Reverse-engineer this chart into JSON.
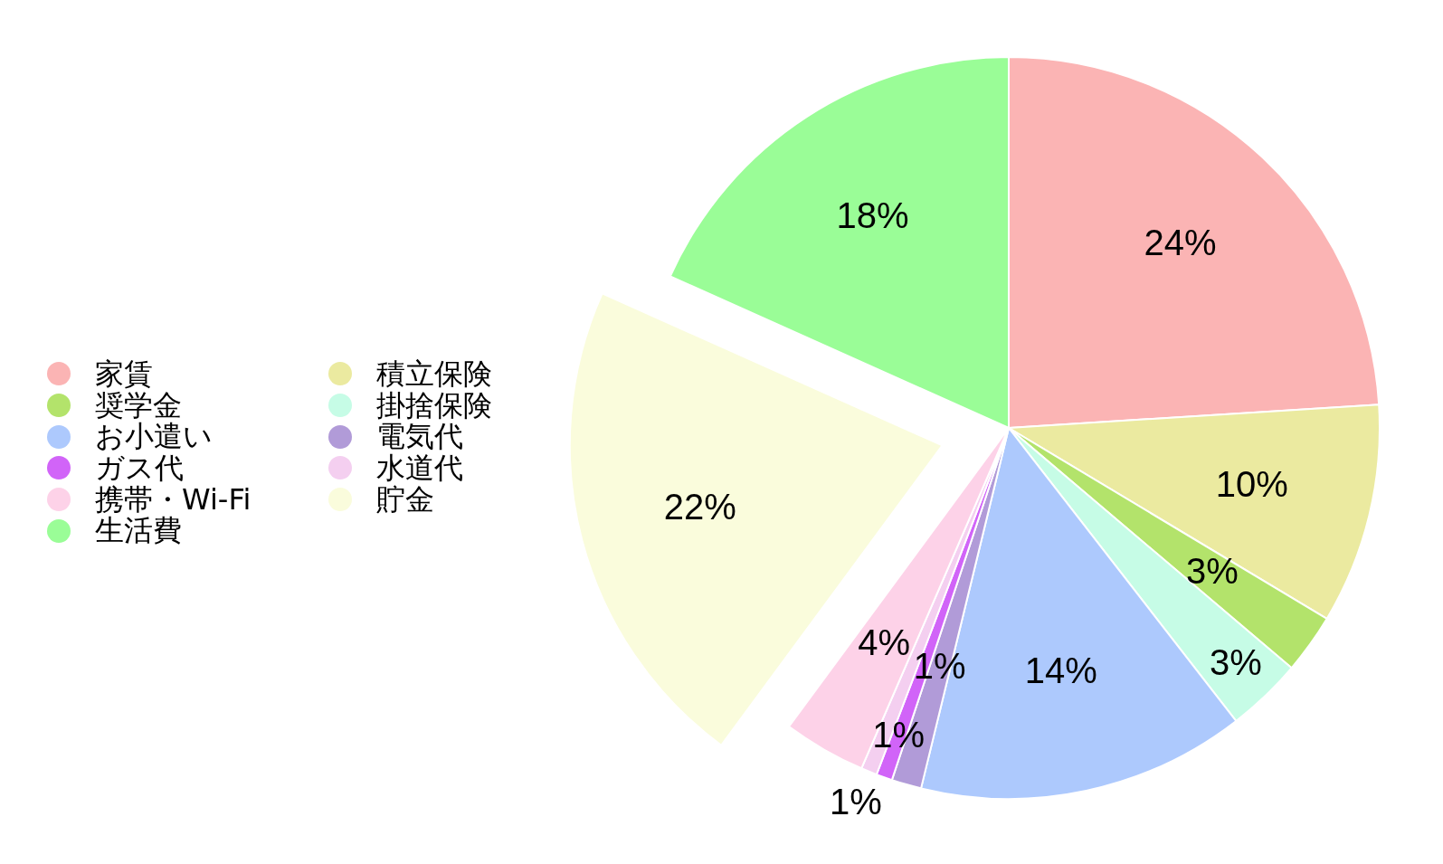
{
  "chart_data": {
    "type": "pie",
    "categories": [
      "家賃",
      "積立保険",
      "奨学金",
      "掛捨保険",
      "お小遣い",
      "電気代",
      "ガス代",
      "水道代",
      "携帯・Wi-Fi",
      "貯金",
      "生活費"
    ],
    "values": [
      24.0,
      9.6,
      2.6,
      3.3,
      14.3,
      1.3,
      0.7,
      0.7,
      3.6,
      21.6,
      18.3
    ],
    "colors": [
      "#fbb4b4",
      "#ebeaa0",
      "#b3e36b",
      "#c6fce6",
      "#adc9fd",
      "#b19bd8",
      "#d164f8",
      "#f4cff0",
      "#fdd2e8",
      "#fafcdc",
      "#9afd97"
    ],
    "value_labels": [
      "24%",
      "10%",
      "3%",
      "3%",
      "14%",
      "1%",
      "1%",
      "1%",
      "4%",
      "22%",
      "18%"
    ],
    "legend": "left"
  }
}
